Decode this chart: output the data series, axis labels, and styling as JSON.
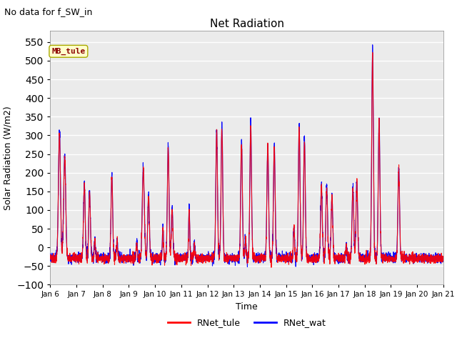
{
  "title": "Net Radiation",
  "suptitle": "No data for f_SW_in",
  "ylabel": "Solar Radiation (W/m2)",
  "xlabel": "Time",
  "ylim": [
    -100,
    580
  ],
  "yticks": [
    -100,
    -50,
    0,
    50,
    100,
    150,
    200,
    250,
    300,
    350,
    400,
    450,
    500,
    550
  ],
  "legend_labels": [
    "RNet_tule",
    "RNet_wat"
  ],
  "legend_colors": [
    "red",
    "blue"
  ],
  "annotation_text": "MB_tule",
  "annotation_color": "#8B0000",
  "annotation_bg": "#FFFFCC",
  "grid_color": "#E8E8E8",
  "background_color": "#EBEBEB",
  "line_width": 0.8,
  "num_points": 3600,
  "x_start": 6,
  "x_end": 21,
  "xtick_labels": [
    "Jan 6",
    "Jan 7",
    "Jan 8",
    "Jan 9",
    "Jan 10",
    "Jan 11",
    "Jan 12",
    "Jan 13",
    "Jan 14",
    "Jan 15",
    "Jan 16",
    "Jan 17",
    "Jan 18",
    "Jan 19",
    "Jan 20",
    "Jan 21"
  ],
  "xtick_positions": [
    6,
    7,
    8,
    9,
    10,
    11,
    12,
    13,
    14,
    15,
    16,
    17,
    18,
    19,
    20,
    21
  ],
  "day_peaks": [
    [
      0.35,
      335,
      0.003,
      0.55,
      270,
      0.003
    ],
    [
      0.3,
      200,
      0.002,
      0.5,
      175,
      0.002,
      0.7,
      50,
      0.001
    ],
    [
      0.35,
      220,
      0.002,
      0.55,
      45,
      0.001
    ],
    [
      0.3,
      40,
      0.001,
      0.55,
      240,
      0.003,
      0.75,
      165,
      0.002
    ],
    [
      0.3,
      80,
      0.001,
      0.5,
      295,
      0.002,
      0.65,
      125,
      0.002
    ],
    [
      0.3,
      130,
      0.001,
      0.5,
      40,
      0.001
    ],
    [
      0.35,
      340,
      0.002,
      0.55,
      350,
      0.002
    ],
    [
      0.3,
      310,
      0.002,
      0.45,
      50,
      0.001,
      0.65,
      355,
      0.002
    ],
    [
      0.3,
      300,
      0.002,
      0.55,
      300,
      0.002
    ],
    [
      0.3,
      85,
      0.001,
      0.5,
      350,
      0.002,
      0.7,
      315,
      0.002
    ],
    [
      0.35,
      190,
      0.002,
      0.55,
      190,
      0.002,
      0.75,
      160,
      0.002
    ],
    [
      0.3,
      30,
      0.001,
      0.55,
      190,
      0.002,
      0.7,
      200,
      0.002
    ],
    [
      0.3,
      550,
      0.002,
      0.55,
      360,
      0.002
    ],
    [
      0.3,
      240,
      0.002
    ]
  ],
  "night_base": -30,
  "night_noise": 12
}
